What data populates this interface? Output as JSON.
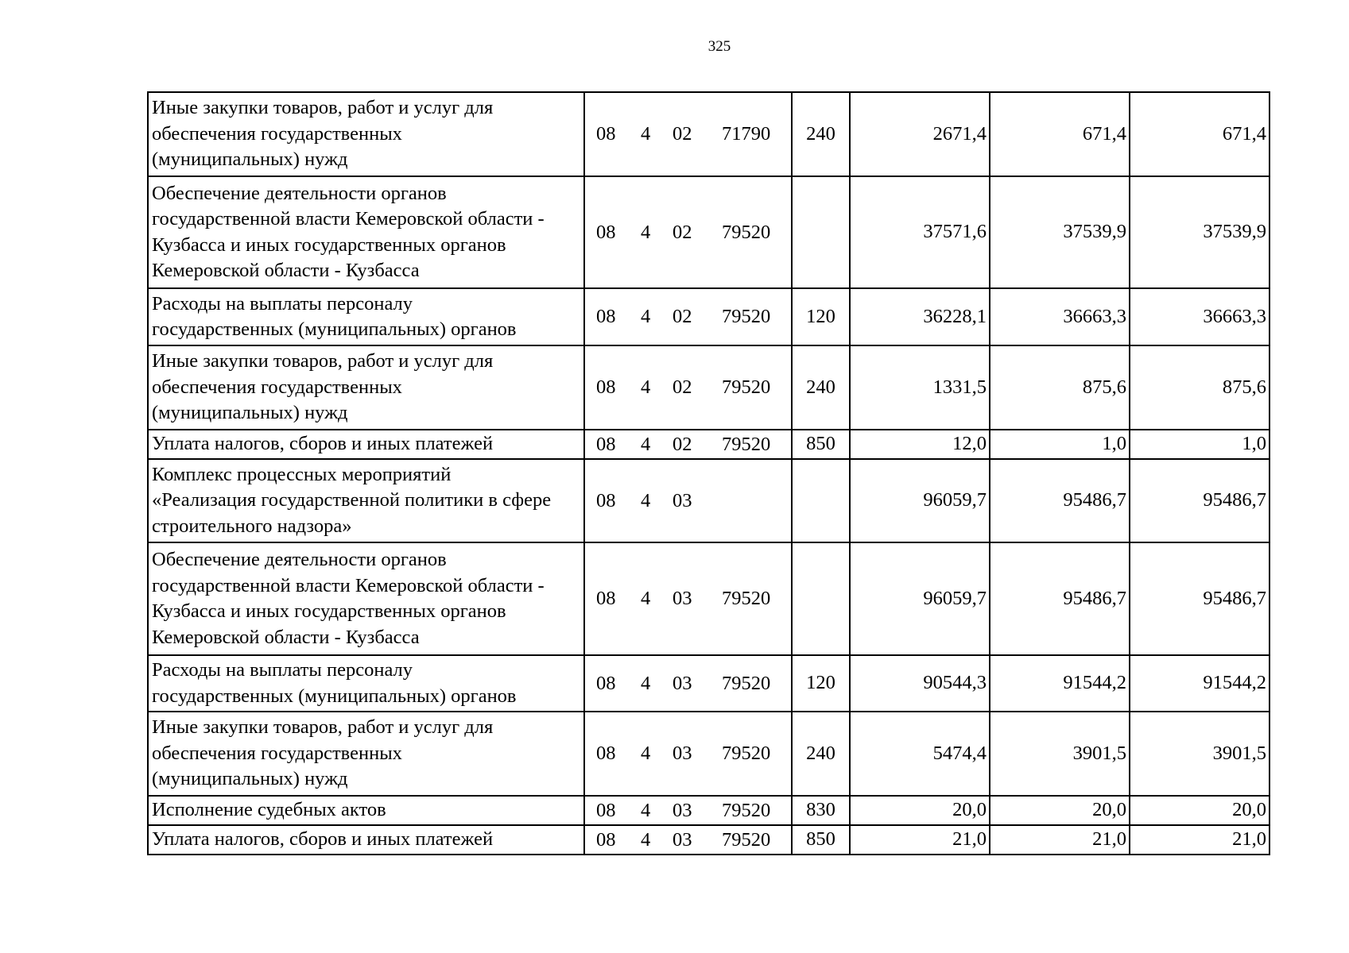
{
  "page_number": "325",
  "rows": [
    {
      "name": "Иные закупки товаров, работ и услуг для обеспечения государственных (муниципальных) нужд",
      "lines": [
        "Иные закупки товаров, работ и услуг для",
        "обеспечения государственных",
        "(муниципальных) нужд"
      ],
      "rz": "08",
      "pr": "4",
      "mp": "02",
      "code": "71790",
      "vr": "240",
      "v1": "2671,4",
      "v2": "671,4",
      "v3": "671,4"
    },
    {
      "lines": [
        "Обеспечение деятельности органов",
        "государственной власти Кемеровской области -",
        "Кузбасса и иных государственных органов",
        "Кемеровской области - Кузбасса"
      ],
      "rz": "08",
      "pr": "4",
      "mp": "02",
      "code": "79520",
      "vr": "",
      "v1": "37571,6",
      "v2": "37539,9",
      "v3": "37539,9"
    },
    {
      "lines": [
        "Расходы на выплаты персоналу",
        "государственных (муниципальных) органов"
      ],
      "rz": "08",
      "pr": "4",
      "mp": "02",
      "code": "79520",
      "vr": "120",
      "v1": "36228,1",
      "v2": "36663,3",
      "v3": "36663,3"
    },
    {
      "lines": [
        "Иные закупки товаров, работ и услуг для",
        "обеспечения государственных",
        "(муниципальных) нужд"
      ],
      "rz": "08",
      "pr": "4",
      "mp": "02",
      "code": "79520",
      "vr": "240",
      "v1": "1331,5",
      "v2": "875,6",
      "v3": "875,6"
    },
    {
      "lines": [
        "Уплата налогов, сборов и иных платежей"
      ],
      "rz": "08",
      "pr": "4",
      "mp": "02",
      "code": "79520",
      "vr": "850",
      "v1": "12,0",
      "v2": "1,0",
      "v3": "1,0"
    },
    {
      "lines": [
        "Комплекс процессных мероприятий",
        "«Реализация государственной политики в сфере",
        "строительного надзора»"
      ],
      "rz": "08",
      "pr": "4",
      "mp": "03",
      "code": "",
      "vr": "",
      "v1": "96059,7",
      "v2": "95486,7",
      "v3": "95486,7"
    },
    {
      "lines": [
        "Обеспечение деятельности органов",
        "государственной власти Кемеровской области -",
        "Кузбасса и иных государственных органов",
        "Кемеровской области - Кузбасса"
      ],
      "rz": "08",
      "pr": "4",
      "mp": "03",
      "code": "79520",
      "vr": "",
      "v1": "96059,7",
      "v2": "95486,7",
      "v3": "95486,7"
    },
    {
      "lines": [
        "Расходы на выплаты персоналу",
        "государственных (муниципальных) органов"
      ],
      "rz": "08",
      "pr": "4",
      "mp": "03",
      "code": "79520",
      "vr": "120",
      "v1": "90544,3",
      "v2": "91544,2",
      "v3": "91544,2"
    },
    {
      "lines": [
        "Иные закупки товаров, работ и услуг для",
        "обеспечения государственных",
        "(муниципальных) нужд"
      ],
      "rz": "08",
      "pr": "4",
      "mp": "03",
      "code": "79520",
      "vr": "240",
      "v1": "5474,4",
      "v2": "3901,5",
      "v3": "3901,5"
    },
    {
      "lines": [
        "Исполнение судебных актов"
      ],
      "rz": "08",
      "pr": "4",
      "mp": "03",
      "code": "79520",
      "vr": "830",
      "v1": "20,0",
      "v2": "20,0",
      "v3": "20,0"
    },
    {
      "lines": [
        "Уплата налогов, сборов и иных платежей"
      ],
      "rz": "08",
      "pr": "4",
      "mp": "03",
      "code": "79520",
      "vr": "850",
      "v1": "21,0",
      "v2": "21,0",
      "v3": "21,0"
    }
  ]
}
